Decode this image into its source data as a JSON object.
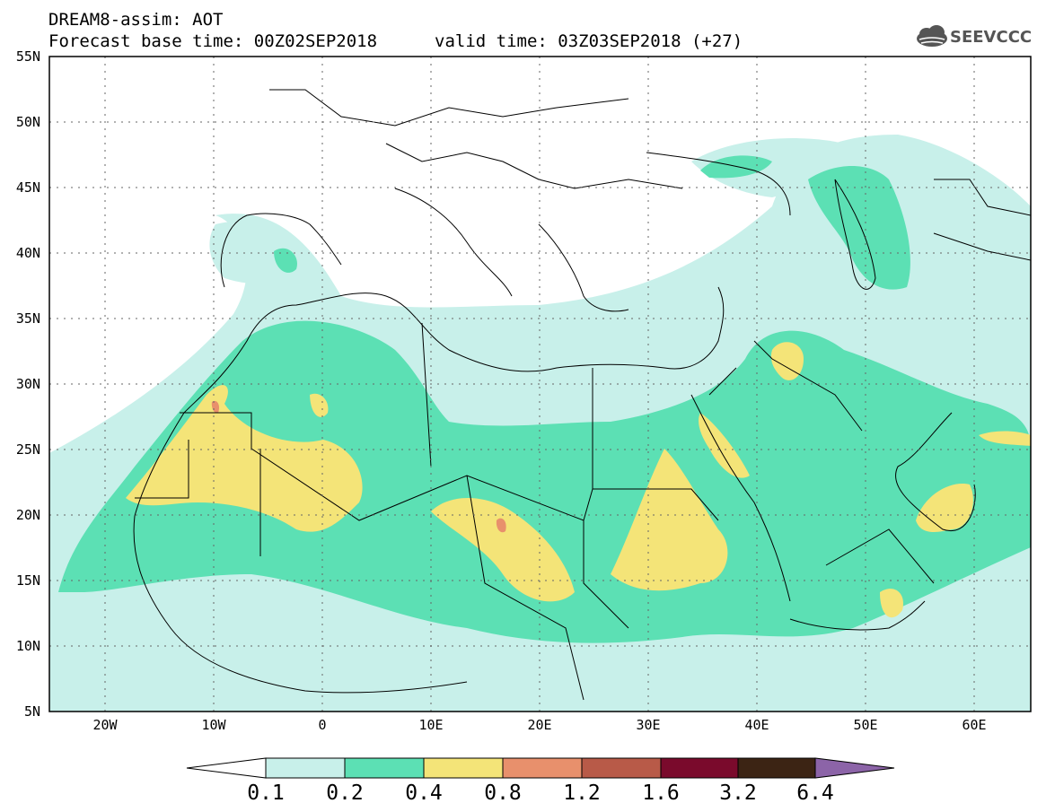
{
  "header": {
    "title": "DREAM8-assim: AOT",
    "base_time": "Forecast base time: 00Z02SEP2018",
    "valid_time": "valid time: 03Z03SEP2018 (+27)"
  },
  "logo": {
    "text": "SEEVCCC",
    "icon": "cloud-icon"
  },
  "map": {
    "lon_range": [
      -25,
      65
    ],
    "lat_range": [
      5,
      55
    ],
    "lat_labels": [
      "55N",
      "50N",
      "45N",
      "40N",
      "35N",
      "30N",
      "25N",
      "20N",
      "15N",
      "10N",
      "5N"
    ],
    "lon_labels": [
      "20W",
      "10W",
      "0",
      "10E",
      "20E",
      "30E",
      "40E",
      "50E",
      "60E"
    ]
  },
  "colorbar": {
    "levels": [
      "0.1",
      "0.2",
      "0.4",
      "0.8",
      "1.2",
      "1.6",
      "3.2",
      "6.4"
    ],
    "colors": [
      "#ffffff",
      "#c8f0ea",
      "#5ce0b4",
      "#f4e478",
      "#e8906c",
      "#b85a48",
      "#7a0a2c",
      "#3c2414",
      "#8c64a8"
    ]
  }
}
